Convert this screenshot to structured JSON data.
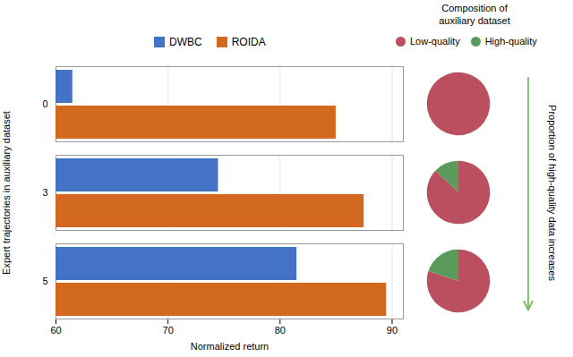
{
  "chart_data": [
    {
      "type": "bar",
      "orientation": "horizontal",
      "categories": [
        "0",
        "3",
        "5"
      ],
      "series": [
        {
          "name": "DWBC",
          "color": "#4472C4",
          "values": [
            61.5,
            74.5,
            81.5
          ]
        },
        {
          "name": "ROIDA",
          "color": "#D2691E",
          "values": [
            85.0,
            87.5,
            89.5
          ]
        }
      ],
      "xlim": [
        60,
        91
      ],
      "xticks": [
        60,
        70,
        80,
        90
      ],
      "xlabel": "Normalized return",
      "ylabel": "Expert trajectories in auxiliary dataset",
      "grid": true,
      "legend": "top"
    },
    {
      "type": "pie",
      "title": "Composition of\nauxiliary dataset",
      "categories": [
        "Low-quality",
        "High-quality"
      ],
      "colors": [
        "#B94F5F",
        "#5A9A5A"
      ],
      "series": [
        {
          "values": [
            1.0,
            0.0
          ]
        },
        {
          "values": [
            0.87,
            0.13
          ]
        },
        {
          "values": [
            0.8,
            0.2
          ]
        }
      ],
      "legend": "top",
      "annotations": [
        "Proportion of high-quality data increases"
      ]
    }
  ]
}
